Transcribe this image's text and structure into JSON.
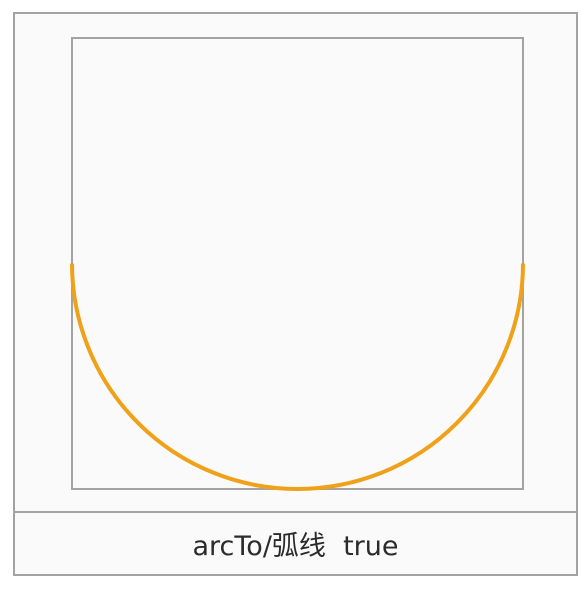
{
  "caption": {
    "text": "arcTo/弧线  true"
  },
  "colors": {
    "card_border": "#a3a3a3",
    "card_background": "#fafafa",
    "rect_stroke": "#a3a3a3",
    "arc_stroke": "#f0a11a",
    "caption_text": "#2b2b2b"
  },
  "drawing": {
    "shapes": [
      "bounding-rectangle",
      "semicircle-arc"
    ],
    "arc_direction": "lower-half"
  }
}
